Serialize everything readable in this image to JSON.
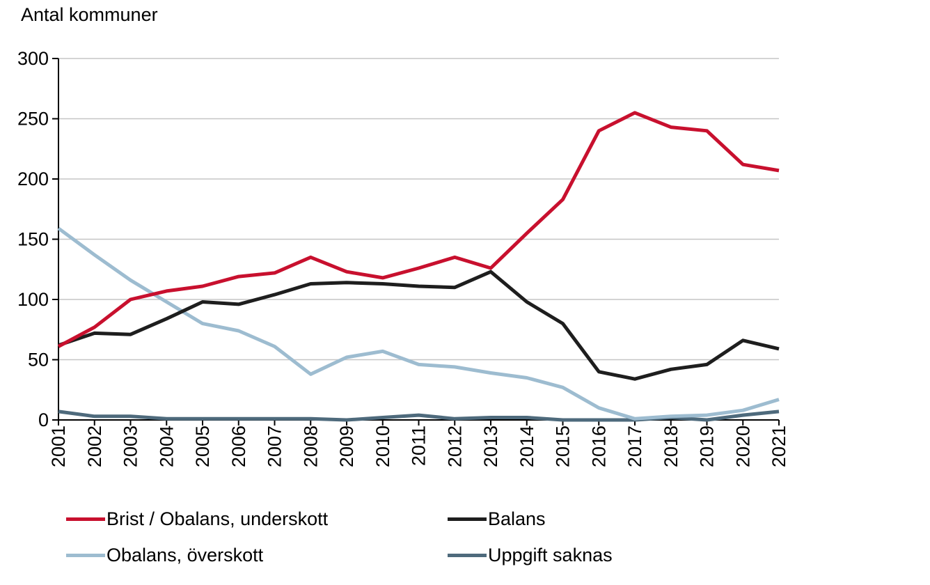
{
  "chart_data": {
    "type": "line",
    "ylabel": "Antal kommuner",
    "ylim": [
      0,
      300
    ],
    "yticks": [
      0,
      50,
      100,
      150,
      200,
      250,
      300
    ],
    "grid": true,
    "legend_position": "bottom",
    "x": [
      "2001",
      "2002",
      "2003",
      "2004",
      "2005",
      "2006",
      "2007",
      "2008",
      "2009",
      "2010",
      "2011",
      "2012",
      "2013",
      "2014",
      "2015",
      "2016",
      "2017",
      "2018",
      "2019",
      "2020",
      "2021"
    ],
    "series": [
      {
        "name": "Brist / Obalans, underskott",
        "color": "#c8102e",
        "values": [
          61,
          77,
          100,
          107,
          111,
          119,
          122,
          135,
          123,
          118,
          126,
          135,
          126,
          155,
          183,
          240,
          255,
          243,
          240,
          212,
          207
        ]
      },
      {
        "name": "Balans",
        "color": "#1e1e1e",
        "values": [
          62,
          72,
          71,
          84,
          98,
          96,
          104,
          113,
          114,
          113,
          111,
          110,
          123,
          98,
          80,
          40,
          34,
          42,
          46,
          66,
          59
        ]
      },
      {
        "name": "Obalans, överskott",
        "color": "#9dbcd0",
        "values": [
          159,
          137,
          116,
          98,
          80,
          74,
          61,
          38,
          52,
          57,
          46,
          44,
          39,
          35,
          27,
          10,
          1,
          3,
          4,
          8,
          17
        ]
      },
      {
        "name": "Uppgift saknas",
        "color": "#4e6a7c",
        "values": [
          7,
          3,
          3,
          1,
          1,
          1,
          1,
          1,
          0,
          2,
          4,
          1,
          2,
          2,
          0,
          0,
          0,
          2,
          0,
          4,
          7
        ]
      }
    ]
  }
}
